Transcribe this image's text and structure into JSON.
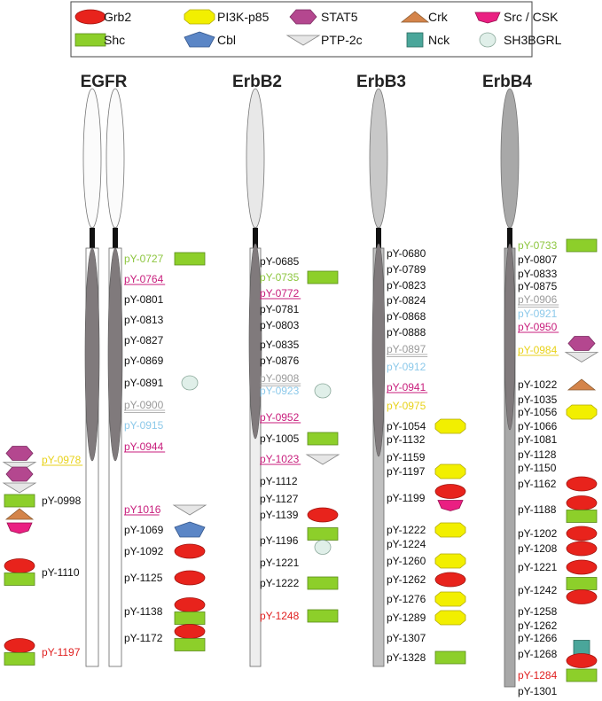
{
  "colors": {
    "Grb2": "#e8231c",
    "Shc": "#8dcf2a",
    "PI3K-p85": "#f2ef00",
    "Cbl": "#5b86c6",
    "STAT5": "#b4478f",
    "PTP-2c": "#e6e6e6",
    "Crk": "#d4844a",
    "Nck": "#4aa69a",
    "Src / CSK": "#ea1f82",
    "SH3BGRL": "#e0efe9",
    "black": "#111111",
    "green": "#8dc63f",
    "magenta": "#c81e7c",
    "blue": "#8cc9ea",
    "gray": "#9a9a9a",
    "yellow": "#e8d21a",
    "red": "#e02020"
  },
  "legend": [
    {
      "name": "Grb2",
      "shape": "ellipse"
    },
    {
      "name": "PI3K-p85",
      "shape": "octagon"
    },
    {
      "name": "STAT5",
      "shape": "hexagon"
    },
    {
      "name": "Crk",
      "shape": "triangle-up"
    },
    {
      "name": "Src / CSK",
      "shape": "pentagon-flat"
    },
    {
      "name": "Shc",
      "shape": "rect"
    },
    {
      "name": "Cbl",
      "shape": "pentagon"
    },
    {
      "name": "PTP-2c",
      "shape": "triangle-down"
    },
    {
      "name": "Nck",
      "shape": "square"
    },
    {
      "name": "SH3BGRL",
      "shape": "circle"
    }
  ],
  "receptors": [
    {
      "name": "EGFR",
      "sites": [
        {
          "label": "pY-0727",
          "color": "green",
          "binders": [
            "Shc"
          ]
        },
        {
          "label": "pY-0764",
          "color": "magenta",
          "style": "underline",
          "binders": []
        },
        {
          "label": "pY-0801",
          "color": "black",
          "binders": []
        },
        {
          "label": "pY-0813",
          "color": "black",
          "binders": []
        },
        {
          "label": "pY-0827",
          "color": "black",
          "binders": []
        },
        {
          "label": "pY-0869",
          "color": "black",
          "binders": []
        },
        {
          "label": "pY-0891",
          "color": "black",
          "binders": [
            "SH3BGRL"
          ]
        },
        {
          "label": "pY-0900",
          "color": "gray",
          "style": "double",
          "binders": []
        },
        {
          "label": "pY-0915",
          "color": "blue",
          "binders": []
        },
        {
          "label": "pY-0944",
          "color": "magenta",
          "style": "underline",
          "binders": []
        },
        {
          "label": "pY1016",
          "color": "magenta",
          "style": "underline",
          "binders": [
            "PTP-2c"
          ]
        },
        {
          "label": "pY-1069",
          "color": "black",
          "binders": [
            "Cbl"
          ]
        },
        {
          "label": "pY-1092",
          "color": "black",
          "binders": [
            "Grb2"
          ]
        },
        {
          "label": "pY-1125",
          "color": "black",
          "binders": [
            "Grb2"
          ]
        },
        {
          "label": "pY-1138",
          "color": "black",
          "binders": [
            "Grb2",
            "Shc"
          ]
        },
        {
          "label": "pY-1172",
          "color": "black",
          "binders": [
            "Grb2",
            "Shc"
          ]
        }
      ],
      "left_sites": [
        {
          "label": "pY-0978",
          "color": "yellow",
          "style": "underline",
          "binders": [
            "STAT5",
            "PTP-2c"
          ]
        },
        {
          "label": "pY-0998",
          "color": "black",
          "binders": [
            "STAT5",
            "PTP-2c",
            "Shc",
            "Crk",
            "Src / CSK"
          ]
        },
        {
          "label": "pY-1110",
          "color": "black",
          "binders": [
            "Grb2",
            "Shc"
          ]
        },
        {
          "label": "pY-1197",
          "color": "red",
          "binders": [
            "Grb2",
            "Shc"
          ]
        }
      ]
    },
    {
      "name": "ErbB2",
      "sites": [
        {
          "label": "pY-0685",
          "color": "black",
          "binders": []
        },
        {
          "label": "pY-0735",
          "color": "green",
          "binders": [
            "Shc"
          ]
        },
        {
          "label": "pY-0772",
          "color": "magenta",
          "style": "underline",
          "binders": []
        },
        {
          "label": "pY-0781",
          "color": "black",
          "binders": []
        },
        {
          "label": "pY-0803",
          "color": "black",
          "binders": []
        },
        {
          "label": "pY-0835",
          "color": "black",
          "binders": []
        },
        {
          "label": "pY-0876",
          "color": "black",
          "binders": []
        },
        {
          "label": "pY-0908",
          "color": "gray",
          "style": "double",
          "binders": []
        },
        {
          "label": "pY-0923",
          "color": "blue",
          "binders": [
            "SH3BGRL"
          ]
        },
        {
          "label": "pY-0952",
          "color": "magenta",
          "style": "underline",
          "binders": []
        },
        {
          "label": "pY-1005",
          "color": "black",
          "binders": [
            "Shc"
          ]
        },
        {
          "label": "pY-1023",
          "color": "magenta",
          "style": "underline",
          "binders": [
            "PTP-2c"
          ]
        },
        {
          "label": "pY-1112",
          "color": "black",
          "binders": []
        },
        {
          "label": "pY-1127",
          "color": "black",
          "binders": []
        },
        {
          "label": "pY-1139",
          "color": "black",
          "binders": [
            "Grb2"
          ]
        },
        {
          "label": "pY-1196",
          "color": "black",
          "binders": [
            "Shc",
            "SH3BGRL"
          ]
        },
        {
          "label": "pY-1221",
          "color": "black",
          "binders": []
        },
        {
          "label": "pY-1222",
          "color": "black",
          "binders": [
            "Shc"
          ]
        },
        {
          "label": "pY-1248",
          "color": "red",
          "binders": [
            "Shc"
          ]
        }
      ]
    },
    {
      "name": "ErbB3",
      "sites": [
        {
          "label": "pY-0680",
          "color": "black",
          "binders": []
        },
        {
          "label": "pY-0789",
          "color": "black",
          "binders": []
        },
        {
          "label": "pY-0823",
          "color": "black",
          "binders": []
        },
        {
          "label": "pY-0824",
          "color": "black",
          "binders": []
        },
        {
          "label": "pY-0868",
          "color": "black",
          "binders": []
        },
        {
          "label": "pY-0888",
          "color": "black",
          "binders": []
        },
        {
          "label": "pY-0897",
          "color": "gray",
          "style": "double",
          "binders": []
        },
        {
          "label": "pY-0912",
          "color": "blue",
          "binders": []
        },
        {
          "label": "pY-0941",
          "color": "magenta",
          "style": "underline",
          "binders": []
        },
        {
          "label": "pY-0975",
          "color": "yellow",
          "binders": []
        },
        {
          "label": "pY-1054",
          "color": "black",
          "binders": [
            "PI3K-p85"
          ]
        },
        {
          "label": "pY-1132",
          "color": "black",
          "binders": []
        },
        {
          "label": "pY-1159",
          "color": "black",
          "binders": []
        },
        {
          "label": "pY-1197",
          "color": "black",
          "binders": [
            "PI3K-p85"
          ]
        },
        {
          "label": "pY-1199",
          "color": "black",
          "binders": [
            "Grb2",
            "Src / CSK"
          ]
        },
        {
          "label": "pY-1222",
          "color": "black",
          "binders": [
            "PI3K-p85"
          ]
        },
        {
          "label": "pY-1224",
          "color": "black",
          "binders": []
        },
        {
          "label": "pY-1260",
          "color": "black",
          "binders": [
            "PI3K-p85"
          ]
        },
        {
          "label": "pY-1262",
          "color": "black",
          "binders": [
            "Grb2"
          ]
        },
        {
          "label": "pY-1276",
          "color": "black",
          "binders": [
            "PI3K-p85"
          ]
        },
        {
          "label": "pY-1289",
          "color": "black",
          "binders": [
            "PI3K-p85"
          ]
        },
        {
          "label": "pY-1307",
          "color": "black",
          "binders": []
        },
        {
          "label": "pY-1328",
          "color": "black",
          "binders": [
            "Shc"
          ]
        }
      ]
    },
    {
      "name": "ErbB4",
      "sites": [
        {
          "label": "pY-0733",
          "color": "green",
          "binders": [
            "Shc"
          ]
        },
        {
          "label": "pY-0807",
          "color": "black",
          "binders": []
        },
        {
          "label": "pY-0833",
          "color": "black",
          "binders": []
        },
        {
          "label": "pY-0875",
          "color": "black",
          "binders": []
        },
        {
          "label": "pY-0906",
          "color": "gray",
          "style": "double",
          "binders": []
        },
        {
          "label": "pY-0921",
          "color": "blue",
          "binders": []
        },
        {
          "label": "pY-0950",
          "color": "magenta",
          "style": "underline",
          "binders": []
        },
        {
          "label": "pY-0984",
          "color": "yellow",
          "style": "underline",
          "binders": [
            "STAT5",
            "PTP-2c"
          ]
        },
        {
          "label": "pY-1022",
          "color": "black",
          "binders": [
            "Crk"
          ]
        },
        {
          "label": "pY-1035",
          "color": "black",
          "binders": []
        },
        {
          "label": "pY-1056",
          "color": "black",
          "binders": [
            "PI3K-p85"
          ]
        },
        {
          "label": "pY-1066",
          "color": "black",
          "binders": []
        },
        {
          "label": "pY-1081",
          "color": "black",
          "binders": []
        },
        {
          "label": "pY-1128",
          "color": "black",
          "binders": []
        },
        {
          "label": "pY-1150",
          "color": "black",
          "binders": []
        },
        {
          "label": "pY-1162",
          "color": "black",
          "binders": [
            "Grb2"
          ]
        },
        {
          "label": "pY-1188",
          "color": "black",
          "binders": [
            "Grb2",
            "Shc"
          ]
        },
        {
          "label": "pY-1202",
          "color": "black",
          "binders": [
            "Grb2"
          ]
        },
        {
          "label": "pY-1208",
          "color": "black",
          "binders": [
            "Grb2"
          ]
        },
        {
          "label": "pY-1221",
          "color": "black",
          "binders": [
            "Grb2"
          ]
        },
        {
          "label": "pY-1242",
          "color": "black",
          "binders": [
            "Shc",
            "Grb2"
          ]
        },
        {
          "label": "pY-1258",
          "color": "black",
          "binders": []
        },
        {
          "label": "pY-1262",
          "color": "black",
          "binders": []
        },
        {
          "label": "pY-1266",
          "color": "black",
          "binders": []
        },
        {
          "label": "pY-1268",
          "color": "black",
          "binders": [
            "Nck",
            "Grb2"
          ]
        },
        {
          "label": "pY-1284",
          "color": "red",
          "binders": [
            "Shc"
          ]
        },
        {
          "label": "pY-1301",
          "color": "black",
          "binders": []
        }
      ]
    }
  ]
}
